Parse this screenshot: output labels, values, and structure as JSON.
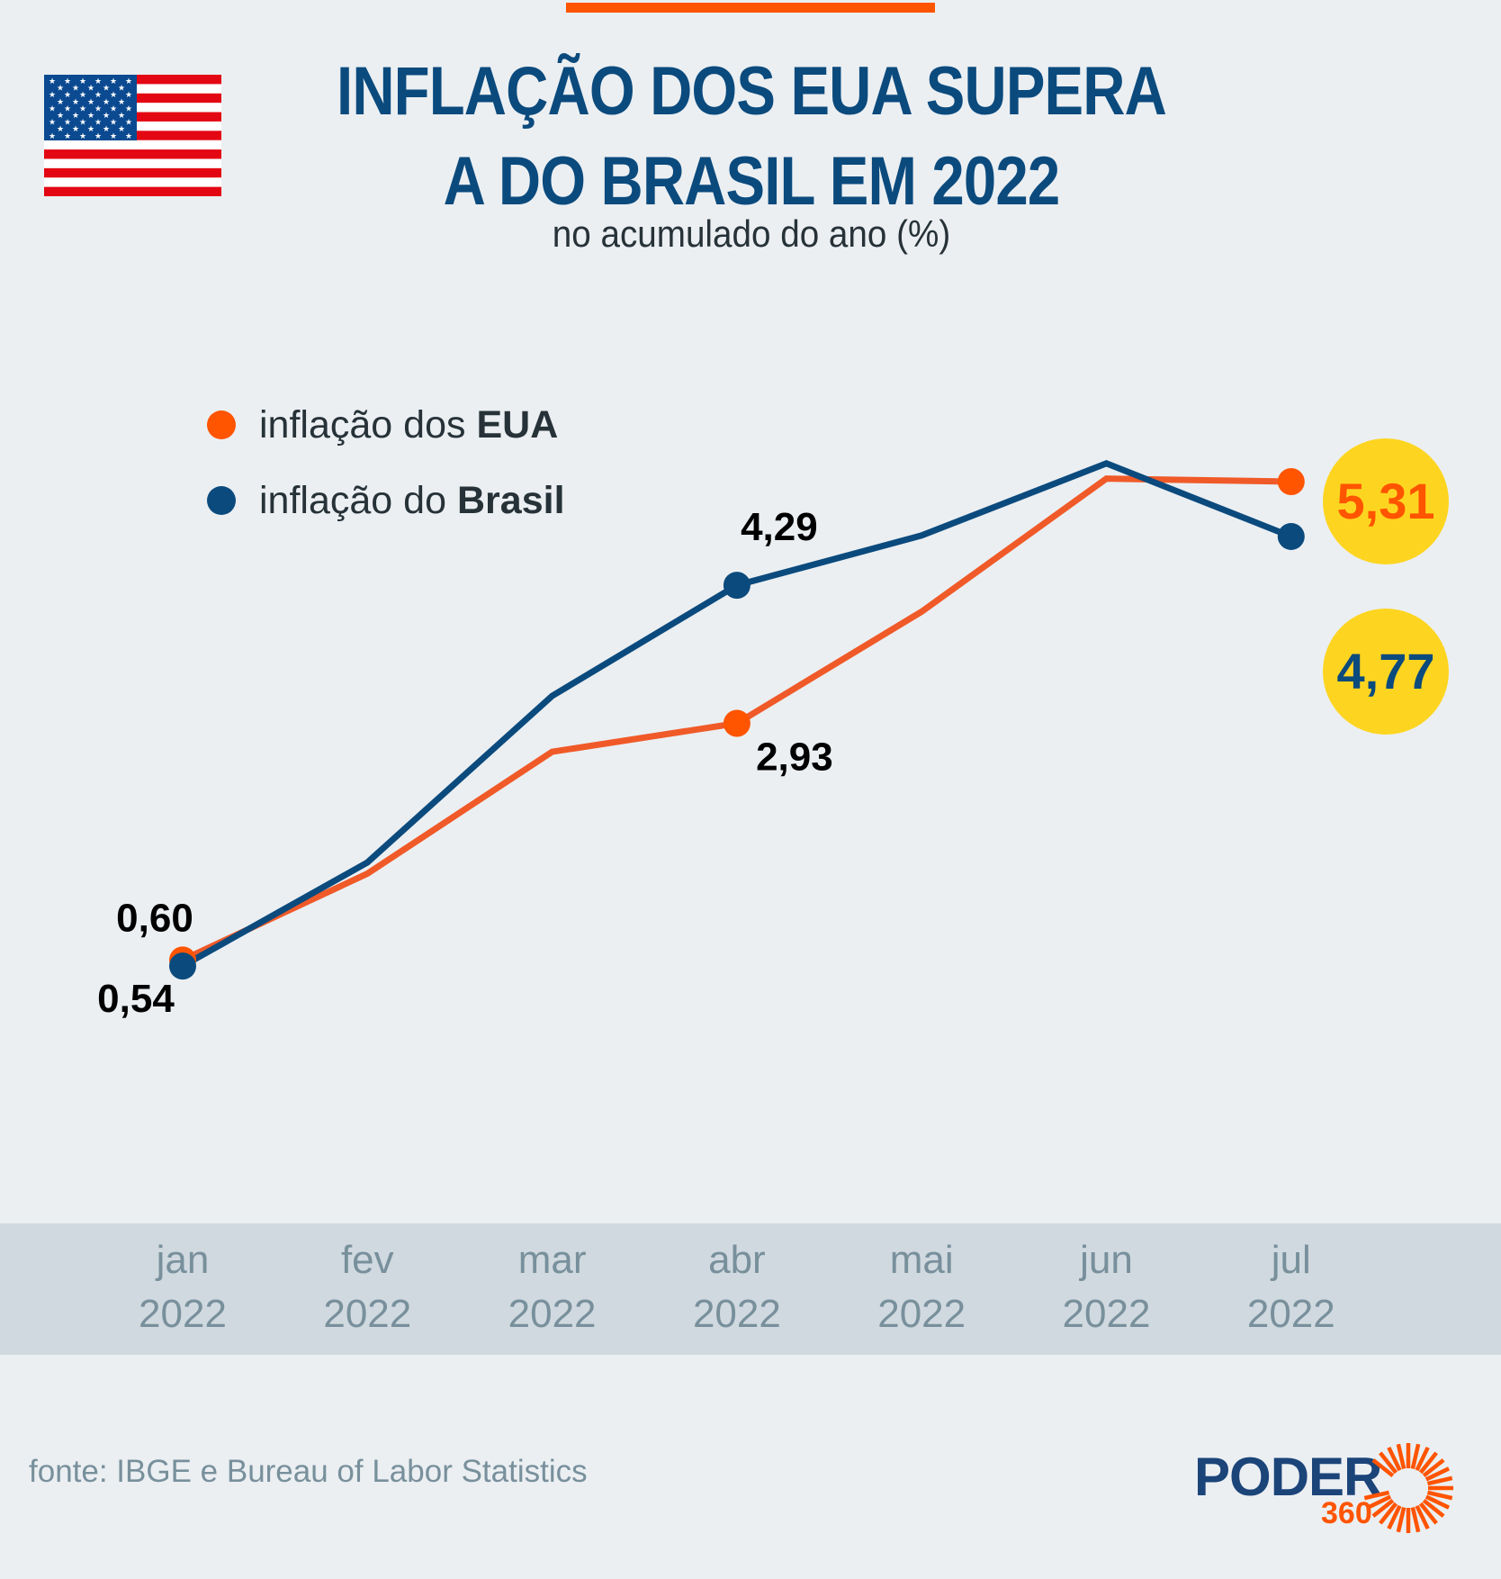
{
  "header": {
    "title_line1": "INFLAÇÃO DOS EUA SUPERA",
    "title_line2": "A DO BRASIL EM 2022",
    "subtitle": "no acumulado do ano (%)",
    "flag_icon": "us-flag-icon"
  },
  "colors": {
    "background": "#ebeff2",
    "usa": "#f05a28",
    "usa_marker": "#ff5400",
    "brasil": "#0b4a7d",
    "highlight_circle": "#fdd520",
    "title": "#0b4a7d",
    "axis_band": "#d0d9df",
    "axis_text": "#78909c",
    "label_text": "#000000"
  },
  "legend": {
    "items": [
      {
        "prefix": "inflação dos",
        "bold": "EUA",
        "series": "usa"
      },
      {
        "prefix": "inflação do",
        "bold": "Brasil",
        "series": "brasil"
      }
    ]
  },
  "chart_data": {
    "type": "line",
    "title": "INFLAÇÃO DOS EUA SUPERA A DO BRASIL EM 2022",
    "subtitle": "no acumulado do ano (%)",
    "xlabel": "",
    "ylabel": "",
    "categories": [
      {
        "month": "jan",
        "year": "2022"
      },
      {
        "month": "fev",
        "year": "2022"
      },
      {
        "month": "mar",
        "year": "2022"
      },
      {
        "month": "abr",
        "year": "2022"
      },
      {
        "month": "mai",
        "year": "2022"
      },
      {
        "month": "jun",
        "year": "2022"
      },
      {
        "month": "jul",
        "year": "2022"
      }
    ],
    "series": [
      {
        "name": "inflação dos EUA",
        "key": "usa",
        "values": [
          0.6,
          1.45,
          2.65,
          2.93,
          4.03,
          5.34,
          5.31
        ],
        "labeled_points": [
          {
            "index": 0,
            "label": "0,60",
            "position": "above-left"
          },
          {
            "index": 3,
            "label": "2,93",
            "position": "below-right"
          },
          {
            "index": 6,
            "label": "5,31",
            "position": "right",
            "highlight": true
          }
        ]
      },
      {
        "name": "inflação do Brasil",
        "key": "brasil",
        "values": [
          0.54,
          1.56,
          3.2,
          4.29,
          4.78,
          5.49,
          4.77
        ],
        "labeled_points": [
          {
            "index": 0,
            "label": "0,54",
            "position": "below-left"
          },
          {
            "index": 3,
            "label": "4,29",
            "position": "above-right"
          },
          {
            "index": 6,
            "label": "4,77",
            "position": "right",
            "highlight": true
          }
        ]
      }
    ],
    "ylim": [
      0,
      6
    ],
    "grid": false,
    "legend_placement": "top-left"
  },
  "footer": {
    "source": "fonte: IBGE e Bureau of Labor Statistics",
    "logo_text": "PODER",
    "logo_number": "360"
  }
}
